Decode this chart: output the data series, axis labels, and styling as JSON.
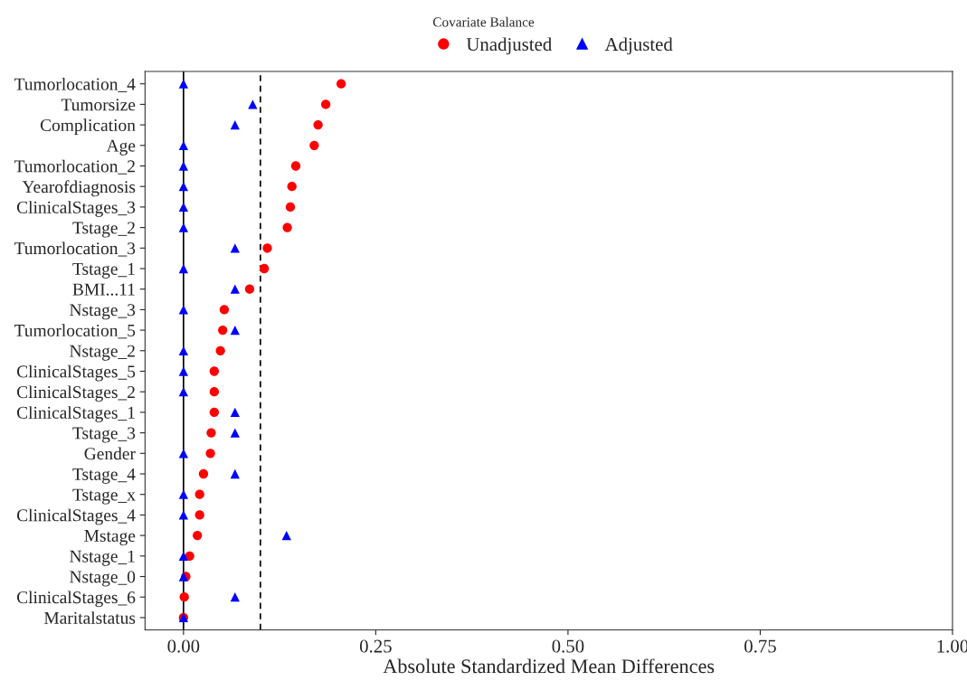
{
  "chart_data": {
    "type": "scatter",
    "title": "Covariate Balance",
    "xlabel": "Absolute Standardized Mean Differences",
    "categories": [
      "Tumorlocation_4",
      "Tumorsize",
      "Complication",
      "Age",
      "Tumorlocation_2",
      "Yearofdiagnosis",
      "ClinicalStages_3",
      "Tstage_2",
      "Tumorlocation_3",
      "Tstage_1",
      "BMI...11",
      "Nstage_3",
      "Tumorlocation_5",
      "Nstage_2",
      "ClinicalStages_5",
      "ClinicalStages_2",
      "ClinicalStages_1",
      "Tstage_3",
      "Gender",
      "Tstage_4",
      "Tstage_x",
      "ClinicalStages_4",
      "Mstage",
      "Nstage_1",
      "Nstage_0",
      "ClinicalStages_6",
      "Maritalstatus"
    ],
    "orientation": "horizontal",
    "series": [
      {
        "name": "Unadjusted",
        "color": "#ff0000",
        "marker": "circle",
        "values": [
          0.205,
          0.185,
          0.175,
          0.17,
          0.146,
          0.141,
          0.139,
          0.135,
          0.109,
          0.105,
          0.086,
          0.053,
          0.051,
          0.048,
          0.04,
          0.04,
          0.04,
          0.036,
          0.035,
          0.026,
          0.021,
          0.021,
          0.018,
          0.008,
          0.003,
          0.001,
          0.0
        ]
      },
      {
        "name": "Adjusted",
        "color": "#0000ff",
        "marker": "triangle",
        "values": [
          0,
          0.09,
          0.067,
          0,
          0,
          0,
          0,
          0,
          0.067,
          0,
          0.067,
          0,
          0.067,
          0,
          0,
          0,
          0.067,
          0.067,
          0,
          0.067,
          0,
          0,
          0.134,
          0,
          0,
          0.067,
          0
        ]
      }
    ],
    "xlim": [
      -0.05,
      1.0
    ],
    "xticks": [
      {
        "value": 0,
        "label": "0.00"
      },
      {
        "value": 0.25,
        "label": "0.25"
      },
      {
        "value": 0.5,
        "label": "0.50"
      },
      {
        "value": 0.75,
        "label": "0.75"
      },
      {
        "value": 1.0,
        "label": "1.00"
      }
    ],
    "ref_lines": [
      {
        "axis": "x",
        "value": 0,
        "color": "#000000",
        "line_style": "solid"
      },
      {
        "axis": "x",
        "value": 0.1,
        "color": "#000000",
        "line_style": "dashed"
      }
    ],
    "grid": false,
    "legend": "top"
  }
}
